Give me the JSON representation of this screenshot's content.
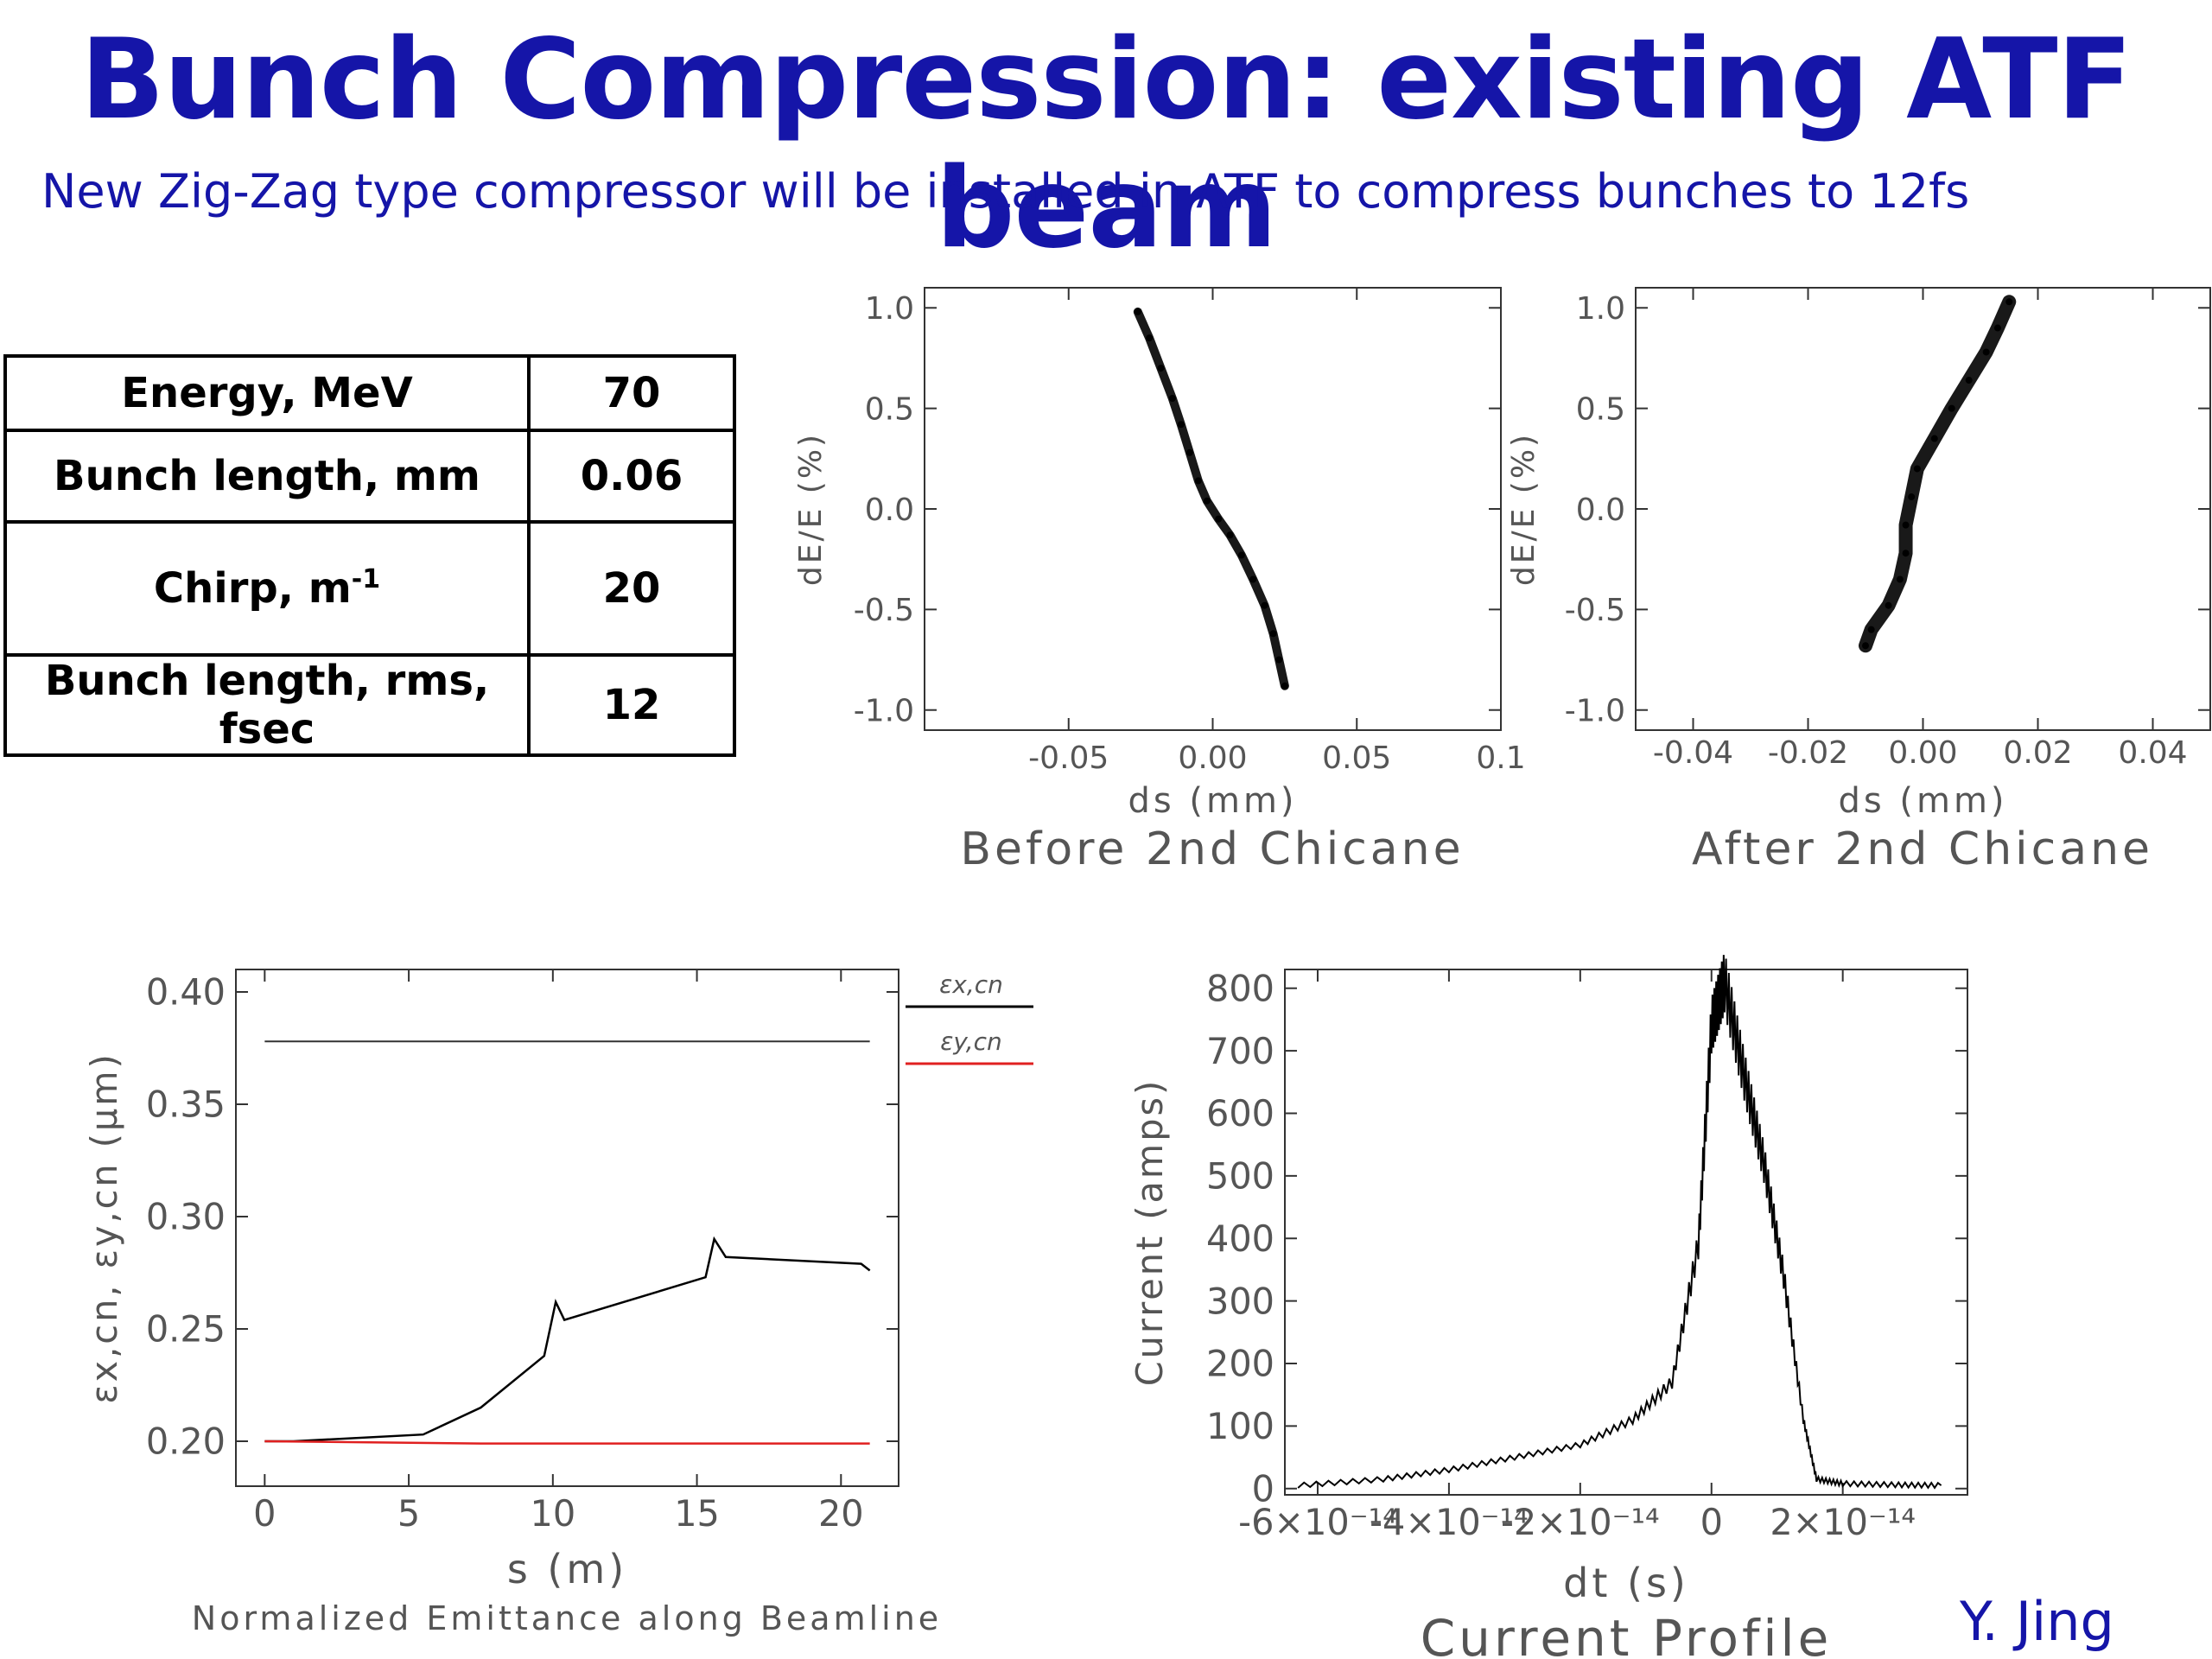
{
  "slide": {
    "title": "Bunch Compression: existing ATF beam",
    "subtitle": "New Zig-Zag type compressor will be installed in ATF to compress bunches to 12fs",
    "author": "Y. Jing",
    "title_color": "#1515a8"
  },
  "table": {
    "rows": [
      {
        "label": "Energy, MeV",
        "value": "70"
      },
      {
        "label": "Bunch length, mm",
        "value": "0.06"
      },
      {
        "label": "Chirp, m",
        "label_sup": "-1",
        "value": "20"
      },
      {
        "label": "Bunch length, rms, fsec",
        "value": "12"
      }
    ]
  },
  "chart_data": [
    {
      "id": "before",
      "type": "scatter",
      "caption": "Before 2nd Chicane",
      "xlabel": "ds (mm)",
      "ylabel": "dE/E (%)",
      "xlim": [
        -0.1,
        0.1
      ],
      "ylim": [
        -1.1,
        1.1
      ],
      "xticks": [
        "-0.05",
        "0.00",
        "0.05",
        "0.1"
      ],
      "xtick_values": [
        -0.05,
        0.0,
        0.05,
        0.1
      ],
      "yticks": [
        "1.0",
        "0.5",
        "0.0",
        "-0.5",
        "-1.0"
      ],
      "ytick_values": [
        1.0,
        0.5,
        0.0,
        -0.5,
        -1.0
      ],
      "points": [
        [
          -0.026,
          0.98
        ],
        [
          -0.022,
          0.85
        ],
        [
          -0.018,
          0.7
        ],
        [
          -0.014,
          0.55
        ],
        [
          -0.011,
          0.42
        ],
        [
          -0.008,
          0.28
        ],
        [
          -0.005,
          0.14
        ],
        [
          -0.002,
          0.04
        ],
        [
          0.002,
          -0.05
        ],
        [
          0.006,
          -0.13
        ],
        [
          0.01,
          -0.23
        ],
        [
          0.014,
          -0.35
        ],
        [
          0.018,
          -0.48
        ],
        [
          0.021,
          -0.62
        ],
        [
          0.023,
          -0.75
        ],
        [
          0.025,
          -0.88
        ]
      ],
      "color": "#000000"
    },
    {
      "id": "after",
      "type": "scatter",
      "caption": "After 2nd Chicane",
      "xlabel": "ds (mm)",
      "ylabel": "dE/E (%)",
      "xlim": [
        -0.05,
        0.05
      ],
      "ylim": [
        -1.1,
        1.1
      ],
      "xticks": [
        "-0.04",
        "-0.02",
        "0.00",
        "0.02",
        "0.04"
      ],
      "xtick_values": [
        -0.04,
        -0.02,
        0.0,
        0.02,
        0.04
      ],
      "yticks": [
        "1.0",
        "0.5",
        "0.0",
        "-0.5",
        "-1.0"
      ],
      "ytick_values": [
        1.0,
        0.5,
        0.0,
        -0.5,
        -1.0
      ],
      "points": [
        [
          0.015,
          1.03
        ],
        [
          0.013,
          0.9
        ],
        [
          0.011,
          0.78
        ],
        [
          0.008,
          0.64
        ],
        [
          0.005,
          0.5
        ],
        [
          0.002,
          0.35
        ],
        [
          -0.001,
          0.2
        ],
        [
          -0.002,
          0.06
        ],
        [
          -0.003,
          -0.08
        ],
        [
          -0.003,
          -0.22
        ],
        [
          -0.004,
          -0.35
        ],
        [
          -0.006,
          -0.48
        ],
        [
          -0.009,
          -0.6
        ],
        [
          -0.01,
          -0.68
        ]
      ],
      "color": "#000000"
    },
    {
      "id": "emittance",
      "type": "line",
      "caption": "Normalized Emittance along Beamline",
      "xlabel": "s (m)",
      "ylabel": "εx,cn, εy,cn (μm)",
      "xlim": [
        -1,
        22
      ],
      "ylim": [
        0.18,
        0.41
      ],
      "xticks": [
        "0",
        "5",
        "10",
        "15",
        "20"
      ],
      "xtick_values": [
        0,
        5,
        10,
        15,
        20
      ],
      "yticks": [
        "0.40",
        "0.35",
        "0.30",
        "0.25",
        "0.20"
      ],
      "ytick_values": [
        0.4,
        0.35,
        0.3,
        0.25,
        0.2
      ],
      "legend_position": "right",
      "series": [
        {
          "name": "εx,cn",
          "color": "#000000",
          "x": [
            0,
            1,
            5.5,
            7.5,
            9.7,
            10.1,
            10.4,
            15.3,
            15.6,
            16.0,
            20.7,
            21.0
          ],
          "y": [
            0.2,
            0.2,
            0.203,
            0.215,
            0.238,
            0.262,
            0.254,
            0.273,
            0.29,
            0.282,
            0.279,
            0.276
          ]
        },
        {
          "name": "εy,cn",
          "color": "#e02020",
          "x": [
            0,
            7.5,
            21.0
          ],
          "y": [
            0.2,
            0.199,
            0.199
          ]
        }
      ]
    },
    {
      "id": "current",
      "type": "line",
      "caption": "Current Profile",
      "xlabel": "dt (s)",
      "ylabel": "Current (amps)",
      "xlim": [
        -6.5e-14,
        3.9e-14
      ],
      "ylim": [
        -10,
        830
      ],
      "xticks": [
        "-6×10⁻¹⁴",
        "-4×10⁻¹⁴",
        "-2×10⁻¹⁴",
        "0",
        "2×10⁻¹⁴"
      ],
      "xtick_values": [
        -6e-14,
        -4e-14,
        -2e-14,
        0,
        2e-14
      ],
      "yticks": [
        "800",
        "700",
        "600",
        "500",
        "400",
        "300",
        "200",
        "100",
        "0"
      ],
      "ytick_values": [
        800,
        700,
        600,
        500,
        400,
        300,
        200,
        100,
        0
      ],
      "x": [
        -6.3e-14,
        -5e-14,
        -4e-14,
        -3e-14,
        -2e-14,
        -1.2e-14,
        -6e-15,
        -2e-15,
        0.0,
        2e-15,
        5e-15,
        8e-15,
        1.1e-14,
        1.4e-14,
        1.6e-14,
        2e-14,
        2.8e-14,
        3.5e-14
      ],
      "y": [
        5,
        15,
        30,
        50,
        70,
        110,
        170,
        390,
        740,
        810,
        660,
        520,
        340,
        110,
        15,
        8,
        6,
        5
      ],
      "color": "#000000"
    }
  ]
}
